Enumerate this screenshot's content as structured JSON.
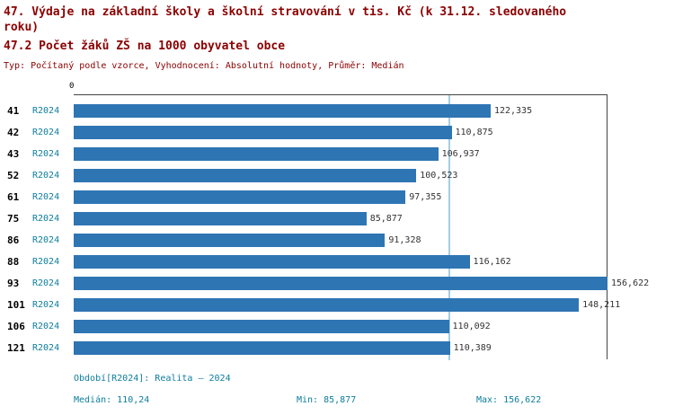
{
  "title": {
    "line1": "47. Výdaje na základní školy a školní stravování v tis. Kč (k 31.12. sledovaného roku)",
    "line2": "47.2 Počet žáků ZŠ na 1000 obyvatel obce",
    "meta": "Typ: Počítaný podle vzorce, Vyhodnocení: Absolutní hodnoty, Průměr: Medián"
  },
  "chart_data": {
    "type": "bar",
    "orientation": "horizontal",
    "title": "47. Výdaje na základní školy a školní stravování v tis. Kč (k 31.12. sledovaného roku)",
    "subtitle": "47.2 Počet žáků ZŠ na 1000 obyvatel obce",
    "x_axis_zero_label": "0",
    "categories": [
      "41",
      "42",
      "43",
      "52",
      "61",
      "75",
      "86",
      "88",
      "93",
      "101",
      "106",
      "121"
    ],
    "series_label": "R2024",
    "values": [
      122335,
      110875,
      106937,
      100523,
      97355,
      85877,
      91328,
      116162,
      156622,
      148211,
      110092,
      110389
    ],
    "value_labels": [
      "122,335",
      "110,875",
      "106,937",
      "100,523",
      "97,355",
      "85,877",
      "91,328",
      "116,162",
      "156,622",
      "148,211",
      "110,092",
      "110,389"
    ],
    "xlim": [
      0,
      156622
    ],
    "median_value": 110240.5,
    "min_value": 85877,
    "max_value": 156622,
    "bar_color": "#2e75b4",
    "median_line_color": "#a3cde4",
    "legend_position": "none",
    "grid": "off"
  },
  "footer": {
    "period": "Období[R2024]: Realita – 2024",
    "median": "Medián: 110,24",
    "min": "Min: 85,877",
    "max": "Max: 156,622"
  },
  "colors": {
    "title_text": "#8b0000",
    "series_label_text": "#0e7d9d",
    "footer_text": "#0e7d9d",
    "value_label_text": "#333333",
    "axis_line": "#444444",
    "bar": "#2e75b4",
    "median_line": "#a3cde4"
  }
}
